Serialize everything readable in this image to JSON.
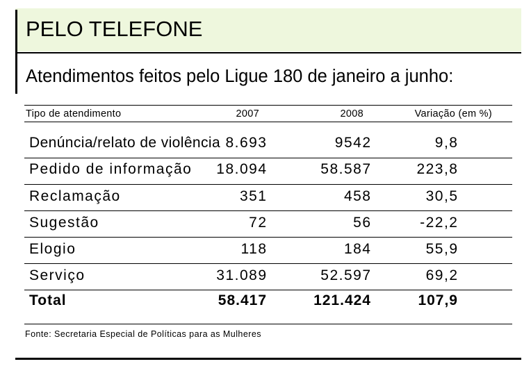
{
  "slide": {
    "colors": {
      "header_band": "#EEF7DD",
      "rules": "#000000",
      "text": "#000000",
      "background": "#FFFFFF"
    }
  },
  "chart_data": {
    "type": "table",
    "title": "PELO TELEFONE",
    "subtitle": "Atendimentos feitos pelo Ligue 180 de janeiro a junho:",
    "columns": [
      "Tipo de atendimento",
      "2007",
      "2008",
      "Variação (em %)"
    ],
    "rows": [
      {
        "label": "Denúncia/relato de violência",
        "c2007": "8.693",
        "c2008": "9542",
        "variation": "9,8"
      },
      {
        "label": "Pedido de informação",
        "c2007": "18.094",
        "c2008": "58.587",
        "variation": "223,8"
      },
      {
        "label": "Reclamação",
        "c2007": "351",
        "c2008": "458",
        "variation": "30,5"
      },
      {
        "label": "Sugestão",
        "c2007": "72",
        "c2008": "56",
        "variation": "-22,2"
      },
      {
        "label": "Elogio",
        "c2007": "118",
        "c2008": "184",
        "variation": "55,9"
      },
      {
        "label": "Serviço",
        "c2007": "31.089",
        "c2008": "52.597",
        "variation": "69,2"
      }
    ],
    "total": {
      "label": "Total",
      "c2007": "58.417",
      "c2008": "121.424",
      "variation": "107,9"
    },
    "categories": [
      "Denúncia/relato de violência",
      "Pedido de informação",
      "Reclamação",
      "Sugestão",
      "Elogio",
      "Serviço"
    ],
    "series": [
      {
        "name": "2007",
        "values": [
          8693,
          18094,
          351,
          72,
          118,
          31089
        ]
      },
      {
        "name": "2008",
        "values": [
          9542,
          58587,
          458,
          56,
          184,
          52597
        ]
      },
      {
        "name": "Variação (em %)",
        "values": [
          9.8,
          223.8,
          30.5,
          -22.2,
          55.9,
          69.2
        ]
      }
    ],
    "totals_numeric": {
      "2007": 58417,
      "2008": 121424,
      "Variação (em %)": 107.9
    },
    "source": "Fonte: Secretaria Especial de Políticas para as Mulheres",
    "grid": "horizontal rules between rows",
    "legend": "none"
  }
}
